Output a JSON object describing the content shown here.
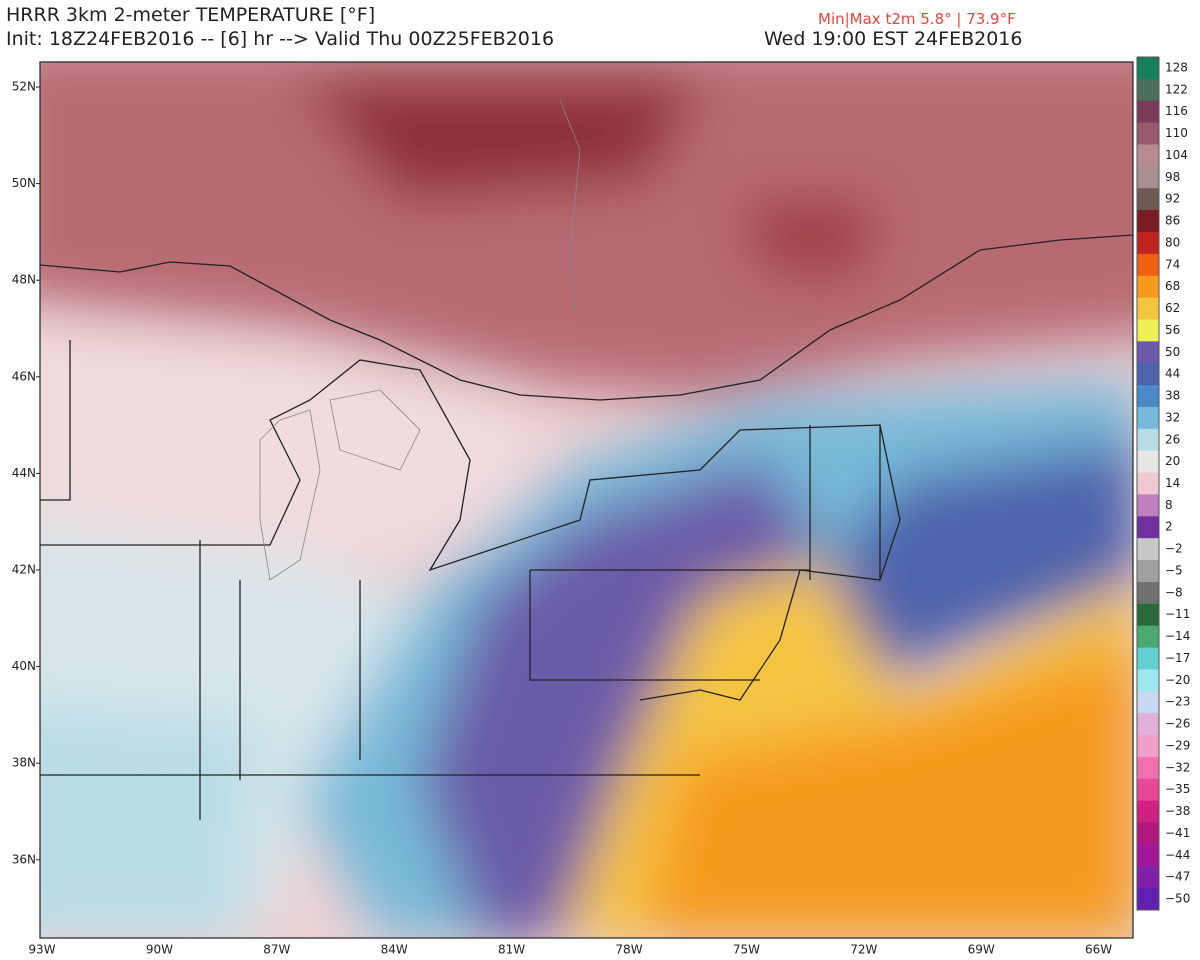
{
  "header": {
    "title": "HRRR 3km 2-meter TEMPERATURE [°F]",
    "init": "Init: 18Z24FEB2016 -- [6] hr --> Valid Thu 00Z25FEB2016",
    "minmax": "Min|Max t2m 5.8° | 73.9°F",
    "valid": "Wed 19:00 EST 24FEB2016"
  },
  "latitudes": [
    "52N",
    "50N",
    "48N",
    "46N",
    "44N",
    "42N",
    "40N",
    "38N",
    "36N"
  ],
  "longitudes": [
    "93W",
    "90W",
    "87W",
    "84W",
    "81W",
    "78W",
    "75W",
    "72W",
    "69W",
    "66W"
  ],
  "colorbar": [
    {
      "label": "128",
      "color": "#15805a"
    },
    {
      "label": "122",
      "color": "#4a6f5e"
    },
    {
      "label": "116",
      "color": "#7a3a5a"
    },
    {
      "label": "110",
      "color": "#9a5a6e"
    },
    {
      "label": "104",
      "color": "#b88a92"
    },
    {
      "label": "98",
      "color": "#a89090"
    },
    {
      "label": "92",
      "color": "#6e5a52"
    },
    {
      "label": "86",
      "color": "#7a1d22"
    },
    {
      "label": "80",
      "color": "#c0221e"
    },
    {
      "label": "74",
      "color": "#f06010"
    },
    {
      "label": "68",
      "color": "#f59a1a"
    },
    {
      "label": "62",
      "color": "#f5c542"
    },
    {
      "label": "56",
      "color": "#eeee55"
    },
    {
      "label": "50",
      "color": "#6b5ba8"
    },
    {
      "label": "44",
      "color": "#4d63ac"
    },
    {
      "label": "38",
      "color": "#4a88c8"
    },
    {
      "label": "32",
      "color": "#77b9d8"
    },
    {
      "label": "26",
      "color": "#b9dde6"
    },
    {
      "label": "20",
      "color": "#e6e6e6"
    },
    {
      "label": "14",
      "color": "#f0c8d0"
    },
    {
      "label": "8",
      "color": "#c080c0"
    },
    {
      "label": "2",
      "color": "#7030a0"
    },
    {
      "label": "−2",
      "color": "#c8c8c8"
    },
    {
      "label": "−5",
      "color": "#a0a0a0"
    },
    {
      "label": "−8",
      "color": "#707070"
    },
    {
      "label": "−11",
      "color": "#2a6a3a"
    },
    {
      "label": "−14",
      "color": "#4aa870"
    },
    {
      "label": "−17",
      "color": "#60d0d0"
    },
    {
      "label": "−20",
      "color": "#a0e8f0"
    },
    {
      "label": "−23",
      "color": "#c8d8f0"
    },
    {
      "label": "−26",
      "color": "#e0b0d8"
    },
    {
      "label": "−29",
      "color": "#f0a0c8"
    },
    {
      "label": "−32",
      "color": "#f070b0"
    },
    {
      "label": "−35",
      "color": "#e84898"
    },
    {
      "label": "−38",
      "color": "#d02080"
    },
    {
      "label": "−41",
      "color": "#b01880"
    },
    {
      "label": "−44",
      "color": "#a01898"
    },
    {
      "label": "−47",
      "color": "#8020a8"
    },
    {
      "label": "−50",
      "color": "#6020b0"
    }
  ]
}
